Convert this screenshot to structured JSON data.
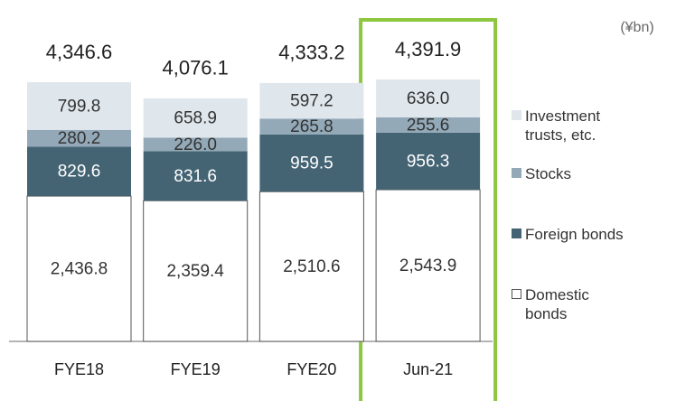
{
  "chart_data": {
    "type": "stacked_bar",
    "unit": "(¥bn)",
    "categories": [
      "FYE18",
      "FYE19",
      "FYE20",
      "Jun-21"
    ],
    "series": [
      {
        "name": "Domestic bonds",
        "color": "#ffffff",
        "values": [
          2436.8,
          2359.4,
          2510.6,
          2543.9
        ],
        "value_labels": [
          "2,436.8",
          "2,359.4",
          "2,510.6",
          "2,543.9"
        ]
      },
      {
        "name": "Foreign bonds",
        "color": "#446474",
        "values": [
          829.6,
          831.6,
          959.5,
          956.3
        ]
      },
      {
        "name": "Stocks",
        "color": "#93a9b8",
        "values": [
          280.2,
          226.0,
          265.8,
          255.6
        ],
        "value_labels": [
          "280.2",
          "226.0",
          "265.8",
          "255.6"
        ]
      },
      {
        "name": "Investment trusts, etc.",
        "color": "#dfe6ec",
        "values": [
          799.8,
          658.9,
          597.2,
          636.0
        ],
        "value_labels": [
          "799.8",
          "658.9",
          "597.2",
          "636.0"
        ]
      }
    ],
    "totals": [
      4346.6,
      4076.1,
      4333.2,
      4391.9
    ],
    "total_labels": [
      "4,346.6",
      "4,076.1",
      "4,333.2",
      "4,391.9"
    ],
    "highlight_color": "#8dc63f"
  }
}
